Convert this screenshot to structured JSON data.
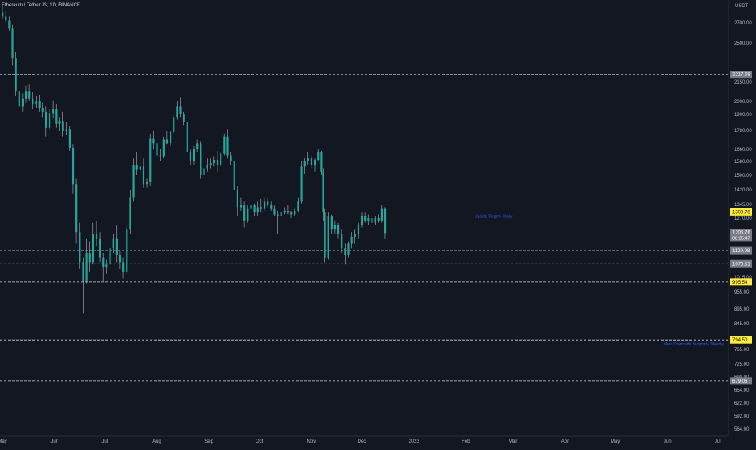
{
  "header": {
    "symbol": "Ethereum / TetherUS, 1D, BINANCE"
  },
  "colors": {
    "background": "#131722",
    "candle": "#26a69a",
    "wick": "#b2b5be",
    "level_line": "#d1d4dc",
    "annotation_text": "#2962ff",
    "highlight_label_bg": "#ffeb3b",
    "gray_label_bg": "#787b86",
    "axis_text": "#b2b5be"
  },
  "chart_data": {
    "type": "candlestick",
    "title": "Ethereum / TetherUS, 1D, BINANCE",
    "currency": "USDT",
    "y_ticks": [
      2700,
      2500,
      2150,
      2000,
      1900,
      1780,
      1660,
      1580,
      1500,
      1420,
      1345,
      1270,
      1015,
      955,
      895,
      845,
      765,
      725,
      690,
      654,
      622,
      592,
      564
    ],
    "y_tick_labels": [
      "2700.00",
      "2500.00",
      "2150.00",
      "2000.00",
      "1900.00",
      "1780.00",
      "1660.00",
      "1580.00",
      "1500.00",
      "1420.00",
      "1345.00",
      "1270.00",
      "1015.00",
      "955.00",
      "895.00",
      "845.00",
      "765.00",
      "725.00",
      "690.00",
      "654.00",
      "622.00",
      "592.00",
      "564.00"
    ],
    "x_tick_labels": [
      "May",
      "Jun",
      "Jul",
      "Aug",
      "Sep",
      "Oct",
      "Nov",
      "Dec",
      "2023",
      "Feb",
      "Mar",
      "Apr",
      "May",
      "Jun",
      "Jul"
    ],
    "x_ticks_dates": [
      "2022-05-01",
      "2022-06-01",
      "2022-07-01",
      "2022-08-01",
      "2022-09-01",
      "2022-10-01",
      "2022-11-01",
      "2022-12-01",
      "2023-01-01",
      "2023-02-01",
      "2023-03-01",
      "2023-04-01",
      "2023-05-01",
      "2023-06-01",
      "2023-07-01"
    ],
    "price_levels": [
      {
        "price": 2217.68,
        "label": "2217.68",
        "style": "gray"
      },
      {
        "price": 1303.78,
        "label": "1303.78",
        "style": "highlight",
        "annotation": "Upside Target - Daily"
      },
      {
        "price": 1129.98,
        "label": "1129.98",
        "style": "gray"
      },
      {
        "price": 1073.51,
        "label": "1073.51",
        "style": "gray"
      },
      {
        "price": 995.54,
        "label": "995.54",
        "style": "highlight"
      },
      {
        "price": 794.5,
        "label": "794.50",
        "style": "highlight",
        "annotation": "Most Downside Support - Weekly"
      },
      {
        "price": 679.06,
        "label": "679.06",
        "style": "gray"
      }
    ],
    "last_price": {
      "price": "1205.76",
      "countdown": "08:35:47"
    },
    "series": [
      {
        "candles": [
          [
            "2022-05-01",
            2800,
            2880,
            2740,
            2760
          ],
          [
            "2022-05-03",
            2760,
            2820,
            2700,
            2720
          ],
          [
            "2022-05-05",
            2720,
            2760,
            2620,
            2640
          ],
          [
            "2022-05-07",
            2640,
            2680,
            2300,
            2360
          ],
          [
            "2022-05-09",
            2360,
            2420,
            2040,
            2080
          ],
          [
            "2022-05-11",
            2080,
            2120,
            1780,
            1960
          ],
          [
            "2022-05-13",
            1960,
            2060,
            1920,
            2020
          ],
          [
            "2022-05-15",
            2020,
            2120,
            1990,
            2080
          ],
          [
            "2022-05-17",
            2080,
            2130,
            2000,
            2020
          ],
          [
            "2022-05-19",
            2020,
            2070,
            1940,
            1980
          ],
          [
            "2022-05-21",
            1980,
            2040,
            1950,
            2000
          ],
          [
            "2022-05-23",
            2000,
            2050,
            1920,
            1950
          ],
          [
            "2022-05-25",
            1950,
            1990,
            1880,
            1920
          ],
          [
            "2022-05-27",
            1920,
            1960,
            1740,
            1800
          ],
          [
            "2022-05-29",
            1800,
            1940,
            1790,
            1910
          ],
          [
            "2022-05-31",
            1910,
            2010,
            1870,
            1940
          ],
          [
            "2022-06-02",
            1940,
            1980,
            1800,
            1830
          ],
          [
            "2022-06-04",
            1830,
            1880,
            1780,
            1850
          ],
          [
            "2022-06-06",
            1850,
            1920,
            1740,
            1780
          ],
          [
            "2022-06-08",
            1780,
            1840,
            1750,
            1790
          ],
          [
            "2022-06-10",
            1790,
            1810,
            1650,
            1670
          ],
          [
            "2022-06-12",
            1670,
            1690,
            1400,
            1450
          ],
          [
            "2022-06-14",
            1450,
            1480,
            1160,
            1210
          ],
          [
            "2022-06-16",
            1210,
            1250,
            1050,
            1080
          ],
          [
            "2022-06-18",
            1080,
            1100,
            880,
            1000
          ],
          [
            "2022-06-20",
            1000,
            1180,
            990,
            1120
          ],
          [
            "2022-06-22",
            1120,
            1170,
            1040,
            1080
          ],
          [
            "2022-06-24",
            1080,
            1250,
            1070,
            1200
          ],
          [
            "2022-06-26",
            1200,
            1260,
            1150,
            1180
          ],
          [
            "2022-06-28",
            1180,
            1210,
            1080,
            1100
          ],
          [
            "2022-06-30",
            1100,
            1120,
            1000,
            1060
          ],
          [
            "2022-07-02",
            1060,
            1090,
            1030,
            1070
          ],
          [
            "2022-07-04",
            1070,
            1160,
            1050,
            1140
          ],
          [
            "2022-07-06",
            1140,
            1200,
            1120,
            1180
          ],
          [
            "2022-07-08",
            1180,
            1240,
            1080,
            1110
          ],
          [
            "2022-07-10",
            1110,
            1130,
            1050,
            1080
          ],
          [
            "2022-07-12",
            1080,
            1100,
            1010,
            1040
          ],
          [
            "2022-07-14",
            1040,
            1240,
            1030,
            1220
          ],
          [
            "2022-07-16",
            1220,
            1420,
            1200,
            1380
          ],
          [
            "2022-07-18",
            1380,
            1600,
            1360,
            1560
          ],
          [
            "2022-07-20",
            1560,
            1640,
            1500,
            1530
          ],
          [
            "2022-07-22",
            1530,
            1620,
            1490,
            1550
          ],
          [
            "2022-07-24",
            1550,
            1600,
            1430,
            1450
          ],
          [
            "2022-07-26",
            1450,
            1480,
            1430,
            1460
          ],
          [
            "2022-07-28",
            1460,
            1760,
            1440,
            1730
          ],
          [
            "2022-07-30",
            1730,
            1780,
            1660,
            1700
          ],
          [
            "2022-08-01",
            1700,
            1720,
            1590,
            1620
          ],
          [
            "2022-08-03",
            1620,
            1660,
            1580,
            1610
          ],
          [
            "2022-08-05",
            1610,
            1740,
            1600,
            1720
          ],
          [
            "2022-08-07",
            1720,
            1780,
            1690,
            1700
          ],
          [
            "2022-08-09",
            1700,
            1780,
            1680,
            1770
          ],
          [
            "2022-08-11",
            1770,
            1900,
            1760,
            1880
          ],
          [
            "2022-08-13",
            1880,
            2000,
            1860,
            1960
          ],
          [
            "2022-08-15",
            1960,
            2030,
            1880,
            1900
          ],
          [
            "2022-08-17",
            1900,
            1920,
            1820,
            1840
          ],
          [
            "2022-08-19",
            1840,
            1850,
            1620,
            1640
          ],
          [
            "2022-08-21",
            1640,
            1660,
            1560,
            1580
          ],
          [
            "2022-08-23",
            1580,
            1680,
            1560,
            1660
          ],
          [
            "2022-08-25",
            1660,
            1720,
            1640,
            1700
          ],
          [
            "2022-08-27",
            1700,
            1710,
            1480,
            1500
          ],
          [
            "2022-08-29",
            1500,
            1560,
            1420,
            1540
          ],
          [
            "2022-08-31",
            1540,
            1600,
            1520,
            1560
          ],
          [
            "2022-09-02",
            1560,
            1600,
            1540,
            1570
          ],
          [
            "2022-09-04",
            1570,
            1610,
            1550,
            1590
          ],
          [
            "2022-09-06",
            1590,
            1650,
            1520,
            1560
          ],
          [
            "2022-09-08",
            1560,
            1640,
            1550,
            1630
          ],
          [
            "2022-09-10",
            1630,
            1760,
            1620,
            1740
          ],
          [
            "2022-09-12",
            1740,
            1790,
            1600,
            1620
          ],
          [
            "2022-09-14",
            1620,
            1640,
            1560,
            1580
          ],
          [
            "2022-09-16",
            1580,
            1600,
            1380,
            1420
          ],
          [
            "2022-09-18",
            1420,
            1440,
            1280,
            1330
          ],
          [
            "2022-09-20",
            1330,
            1380,
            1310,
            1340
          ],
          [
            "2022-09-22",
            1340,
            1360,
            1230,
            1260
          ],
          [
            "2022-09-24",
            1260,
            1340,
            1250,
            1320
          ],
          [
            "2022-09-26",
            1320,
            1390,
            1300,
            1340
          ],
          [
            "2022-09-28",
            1340,
            1350,
            1280,
            1300
          ],
          [
            "2022-09-30",
            1300,
            1360,
            1280,
            1330
          ],
          [
            "2022-10-02",
            1330,
            1370,
            1300,
            1320
          ],
          [
            "2022-10-04",
            1320,
            1380,
            1310,
            1360
          ],
          [
            "2022-10-06",
            1360,
            1380,
            1330,
            1340
          ],
          [
            "2022-10-08",
            1340,
            1360,
            1310,
            1320
          ],
          [
            "2022-10-10",
            1320,
            1340,
            1280,
            1290
          ],
          [
            "2022-10-12",
            1290,
            1310,
            1200,
            1280
          ],
          [
            "2022-10-14",
            1280,
            1340,
            1270,
            1300
          ],
          [
            "2022-10-16",
            1300,
            1330,
            1290,
            1310
          ],
          [
            "2022-10-18",
            1310,
            1340,
            1290,
            1300
          ],
          [
            "2022-10-20",
            1300,
            1310,
            1270,
            1290
          ],
          [
            "2022-10-22",
            1290,
            1320,
            1280,
            1310
          ],
          [
            "2022-10-24",
            1310,
            1380,
            1300,
            1360
          ],
          [
            "2022-10-26",
            1360,
            1580,
            1350,
            1550
          ],
          [
            "2022-10-28",
            1550,
            1600,
            1510,
            1580
          ],
          [
            "2022-10-30",
            1580,
            1640,
            1560,
            1600
          ],
          [
            "2022-11-01",
            1600,
            1620,
            1540,
            1560
          ],
          [
            "2022-11-03",
            1560,
            1600,
            1520,
            1590
          ],
          [
            "2022-11-05",
            1590,
            1660,
            1580,
            1640
          ],
          [
            "2022-11-07",
            1640,
            1650,
            1500,
            1520
          ],
          [
            "2022-11-08",
            1520,
            1540,
            1260,
            1300
          ],
          [
            "2022-11-09",
            1300,
            1320,
            1080,
            1100
          ],
          [
            "2022-11-11",
            1100,
            1300,
            1090,
            1280
          ],
          [
            "2022-11-13",
            1280,
            1290,
            1200,
            1220
          ],
          [
            "2022-11-15",
            1220,
            1260,
            1200,
            1240
          ],
          [
            "2022-11-17",
            1240,
            1250,
            1180,
            1200
          ],
          [
            "2022-11-19",
            1200,
            1220,
            1120,
            1140
          ],
          [
            "2022-11-21",
            1140,
            1160,
            1070,
            1110
          ],
          [
            "2022-11-23",
            1110,
            1170,
            1100,
            1160
          ],
          [
            "2022-11-25",
            1160,
            1210,
            1140,
            1190
          ],
          [
            "2022-11-27",
            1190,
            1220,
            1160,
            1200
          ],
          [
            "2022-11-29",
            1200,
            1250,
            1180,
            1240
          ],
          [
            "2022-12-01",
            1240,
            1300,
            1230,
            1280
          ],
          [
            "2022-12-03",
            1280,
            1300,
            1250,
            1260
          ],
          [
            "2022-12-05",
            1260,
            1290,
            1240,
            1270
          ],
          [
            "2022-12-07",
            1270,
            1300,
            1230,
            1250
          ],
          [
            "2022-12-09",
            1250,
            1280,
            1240,
            1270
          ],
          [
            "2022-12-11",
            1270,
            1290,
            1250,
            1260
          ],
          [
            "2022-12-13",
            1260,
            1340,
            1250,
            1320
          ],
          [
            "2022-12-15",
            1320,
            1330,
            1180,
            1205.76
          ]
        ]
      }
    ]
  }
}
